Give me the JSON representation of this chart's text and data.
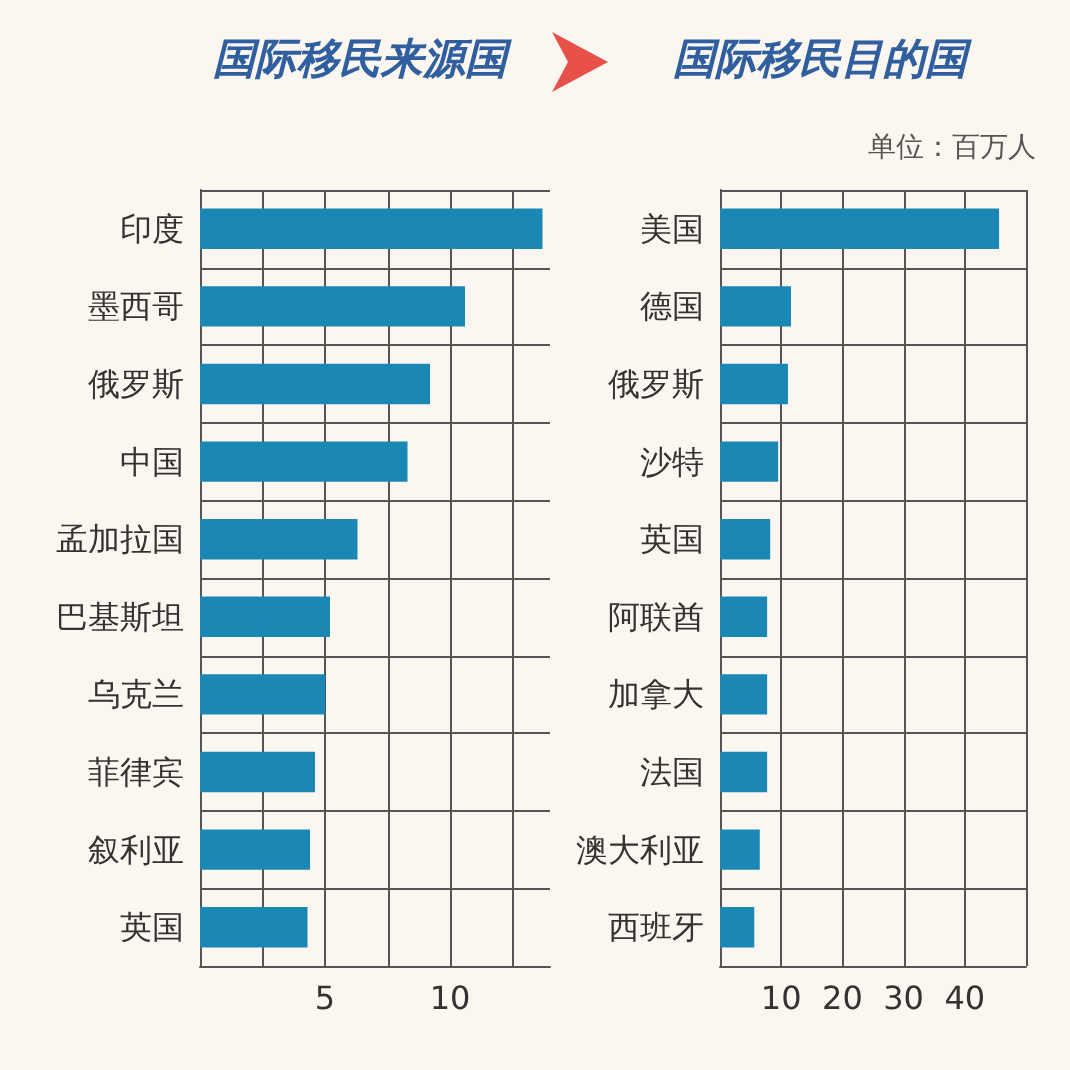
{
  "chart_data": [
    {
      "type": "bar",
      "orientation": "horizontal",
      "title": "国际移民来源国",
      "categories": [
        "印度",
        "墨西哥",
        "俄罗斯",
        "中国",
        "孟加拉国",
        "巴基斯坦",
        "乌克兰",
        "菲律宾",
        "叙利亚",
        "英国"
      ],
      "values": [
        13.7,
        10.6,
        9.2,
        8.3,
        6.3,
        5.2,
        5.0,
        4.6,
        4.4,
        4.3
      ],
      "color": "#1a87b5",
      "xlim": [
        0,
        14
      ],
      "xticks": [
        {
          "value": 0,
          "label": null
        },
        {
          "value": 2.5,
          "label": null
        },
        5,
        {
          "value": 7.5,
          "label": null
        },
        10,
        {
          "value": 12.5,
          "label": null
        }
      ],
      "grid": true
    },
    {
      "type": "bar",
      "orientation": "horizontal",
      "title": "国际移民目的国",
      "annotations": [
        "单位：百万人"
      ],
      "categories": [
        "美国",
        "德国",
        "俄罗斯",
        "沙特",
        "英国",
        "阿联酋",
        "加拿大",
        "法国",
        "澳大利亚",
        "西班牙"
      ],
      "values": [
        45.6,
        11.6,
        11.1,
        9.5,
        8.2,
        7.7,
        7.7,
        7.7,
        6.5,
        5.6
      ],
      "color": "#1a87b5",
      "xlim": [
        0,
        50
      ],
      "xticks": [
        {
          "value": 0,
          "label": null
        },
        10,
        20,
        30,
        40,
        {
          "value": 50,
          "label": null
        }
      ],
      "grid": true
    }
  ]
}
